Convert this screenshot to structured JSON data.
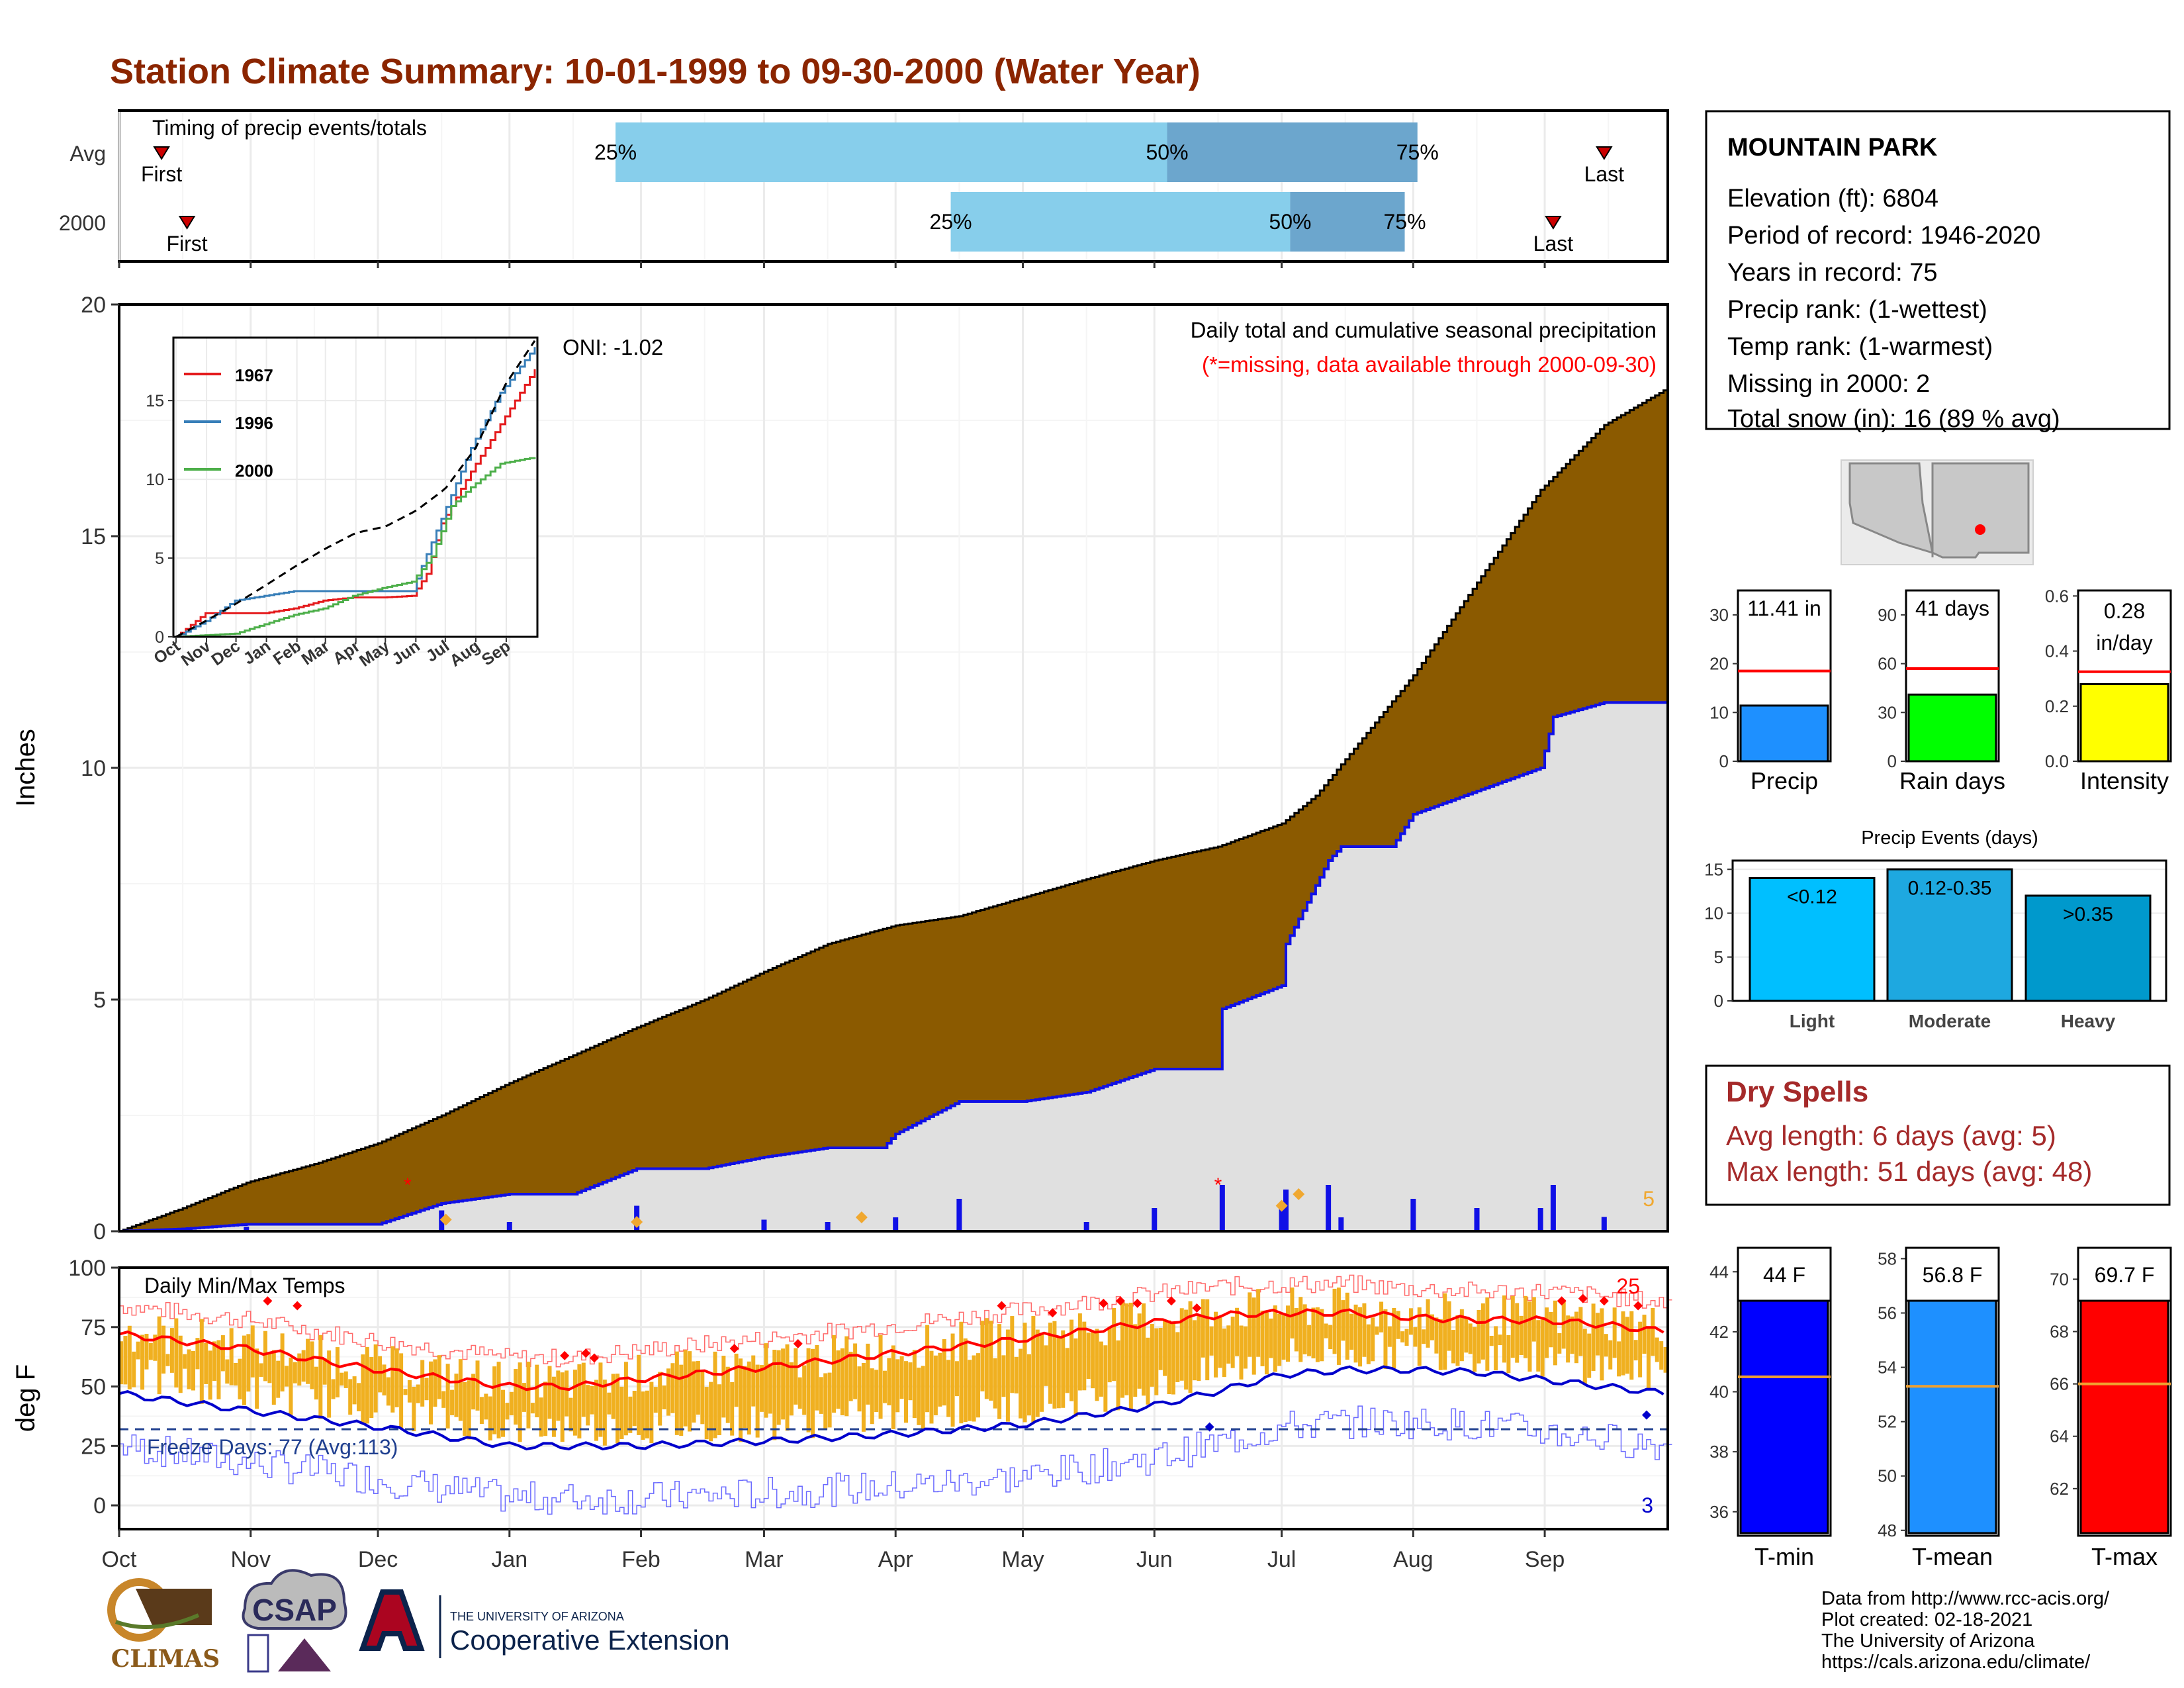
{
  "title": "Station Climate Summary: 10-01-1999 to 09-30-2000 (Water Year)",
  "colors": {
    "title": "#8B2500",
    "precip_fill": "#8B5A00",
    "avg_precip_fill": "#E0E0E0",
    "blue": "#1010E6",
    "red": "#FF0000",
    "orange": "#F0A830",
    "quartile_light": "#87CEEB",
    "quartile_dark": "#6CA6CD",
    "green_line": "#4DAF4A",
    "blue_line": "#377EB8",
    "red_line": "#E41A1C",
    "dry_spell_text": "#A52A2A"
  },
  "timing": {
    "label": "Timing of precip events/totals",
    "rows": [
      {
        "name": "Avg",
        "first": "First",
        "last": "Last",
        "q25": "25%",
        "q50": "50%",
        "q75": "75%",
        "first_day": 10,
        "q25_day": 117,
        "q50_day": 247,
        "q75_day": 306,
        "last_day": 350
      },
      {
        "name": "2000",
        "first": "First",
        "last": "Last",
        "q25": "25%",
        "q50": "50%",
        "q75": "75%",
        "first_day": 16,
        "q25_day": 196,
        "q50_day": 276,
        "q75_day": 303,
        "last_day": 338
      }
    ]
  },
  "x_months": [
    "Oct",
    "Nov",
    "Dec",
    "Jan",
    "Feb",
    "Mar",
    "Apr",
    "May",
    "Jun",
    "Jul",
    "Aug",
    "Sep"
  ],
  "precip_panel": {
    "ylabel": "Inches",
    "yticks": [
      0,
      5,
      10,
      15,
      20
    ],
    "ylim": [
      0,
      20
    ],
    "caption": "Daily total and cumulative seasonal precipitation",
    "subcaption": "(*=missing, data available through 2000-09-30)",
    "oni": "ONI: -1.02",
    "corner_count": "5"
  },
  "inset": {
    "yticks": [
      "0",
      "5",
      "10",
      "15"
    ],
    "xticks": [
      "Oct",
      "Nov",
      "Dec",
      "Jan",
      "Feb",
      "Mar",
      "Apr",
      "May",
      "Jun",
      "Jul",
      "Aug",
      "Sep"
    ],
    "legend": [
      "1967",
      "1996",
      "2000"
    ]
  },
  "temp_panel": {
    "ylabel": "deg F",
    "label": "Daily Min/Max Temps",
    "yticks": [
      0,
      25,
      50,
      75,
      100
    ],
    "freeze_label": "Freeze Days: 77 (Avg:113)",
    "count_top": "25",
    "count_bottom": "3"
  },
  "station": {
    "name": "MOUNTAIN PARK",
    "lines": [
      "Elevation (ft): 6804",
      "Period of record: 1946-2020",
      "Years in record: 75",
      "Precip rank:  (1-wettest)",
      "Temp rank:  (1-warmest)",
      "Missing in 2000: 2",
      "Total snow (in): 16 (89 % avg)"
    ]
  },
  "summary_bars": [
    {
      "label": "Precip",
      "value_label": "11.41 in",
      "value": 11.41,
      "avg": 18.5,
      "ymax": 35,
      "ticks": [
        "0",
        "10",
        "20",
        "30"
      ],
      "tickvals": [
        0,
        10,
        20,
        30
      ],
      "color": "#1E90FF"
    },
    {
      "label": "Rain days",
      "value_label": "41 days",
      "value": 41,
      "avg": 57,
      "ymax": 105,
      "ticks": [
        "0",
        "30",
        "60",
        "90"
      ],
      "tickvals": [
        0,
        30,
        60,
        90
      ],
      "color": "#00FF00"
    },
    {
      "label": "Intensity",
      "value_label": "0.28 in/day",
      "value": 0.28,
      "avg": 0.325,
      "ymax": 0.62,
      "ticks": [
        "0.0",
        "0.2",
        "0.4",
        "0.6"
      ],
      "tickvals": [
        0,
        0.2,
        0.4,
        0.6
      ],
      "color": "#FFFF00"
    }
  ],
  "events": {
    "title": "Precip Events (days)",
    "categories": [
      "Light",
      "Moderate",
      "Heavy"
    ],
    "bar_labels": [
      "<0.12",
      "0.12-0.35",
      ">0.35"
    ],
    "values": [
      14,
      15,
      12
    ],
    "yticks": [
      "0",
      "5",
      "10",
      "15"
    ],
    "colors": [
      "#00BFFF",
      "#1EA8E0",
      "#0099CC"
    ]
  },
  "dry_spells": {
    "title": "Dry Spells",
    "avg_line": "Avg length: 6 days (avg: 5)",
    "max_line": "Max length: 51 days (avg: 48)"
  },
  "temp_bars": [
    {
      "label": "T-min",
      "value_label": "44 F",
      "value": 44,
      "avg": 40.5,
      "ylim": [
        35.2,
        44.8
      ],
      "ticks": [
        "36",
        "38",
        "40",
        "42",
        "44"
      ],
      "tickvals": [
        36,
        38,
        40,
        42,
        44
      ],
      "color": "#0000FF"
    },
    {
      "label": "T-mean",
      "value_label": "56.8 F",
      "value": 56.8,
      "avg": 53.3,
      "ylim": [
        47.8,
        58.4
      ],
      "ticks": [
        "48",
        "50",
        "52",
        "54",
        "56",
        "58"
      ],
      "tickvals": [
        48,
        50,
        52,
        54,
        56,
        58
      ],
      "color": "#1E90FF"
    },
    {
      "label": "T-max",
      "value_label": "69.7 F",
      "value": 69.7,
      "avg": 66,
      "ylim": [
        60.2,
        71.2
      ],
      "ticks": [
        "62",
        "64",
        "66",
        "68",
        "70"
      ],
      "tickvals": [
        62,
        64,
        66,
        68,
        70
      ],
      "color": "#FF0000"
    }
  ],
  "credits": [
    "Data from http://www.rcc-acis.org/",
    "Plot created: 02-18-2021",
    "The University of Arizona",
    "https://cals.arizona.edu/climate/"
  ],
  "logos": {
    "climas": "CLIMAS",
    "csap": "CSAP",
    "ua_small": "THE UNIVERSITY OF ARIZONA",
    "ua_ext": "Cooperative Extension"
  },
  "chart_data": [
    {
      "type": "area",
      "title": "Daily total and cumulative seasonal precipitation",
      "ylabel": "Inches",
      "ylim": [
        0,
        20
      ],
      "x_unit": "day of water year (Oct 1 = 0)",
      "series": [
        {
          "name": "avg cumulative",
          "points": [
            [
              0,
              0
            ],
            [
              15,
              0.5
            ],
            [
              30,
              1.05
            ],
            [
              46,
              1.45
            ],
            [
              61,
              1.9
            ],
            [
              76,
              2.5
            ],
            [
              92,
              3.2
            ],
            [
              107,
              3.8
            ],
            [
              122,
              4.4
            ],
            [
              138,
              5.0
            ],
            [
              152,
              5.6
            ],
            [
              167,
              6.2
            ],
            [
              183,
              6.6
            ],
            [
              198,
              6.8
            ],
            [
              213,
              7.2
            ],
            [
              228,
              7.6
            ],
            [
              244,
              8.0
            ],
            [
              259,
              8.3
            ],
            [
              274,
              8.8
            ],
            [
              282,
              9.4
            ],
            [
              290,
              10.3
            ],
            [
              305,
              12.0
            ],
            [
              320,
              14.0
            ],
            [
              335,
              16.0
            ],
            [
              350,
              17.4
            ],
            [
              365,
              18.2
            ]
          ]
        },
        {
          "name": "2000 cumulative",
          "points": [
            [
              0,
              0
            ],
            [
              15,
              0.05
            ],
            [
              30,
              0.15
            ],
            [
              46,
              0.15
            ],
            [
              61,
              0.15
            ],
            [
              76,
              0.6
            ],
            [
              92,
              0.8
            ],
            [
              107,
              0.8
            ],
            [
              122,
              1.35
            ],
            [
              138,
              1.35
            ],
            [
              152,
              1.6
            ],
            [
              167,
              1.8
            ],
            [
              180,
              1.8
            ],
            [
              183,
              2.1
            ],
            [
              198,
              2.8
            ],
            [
              213,
              2.8
            ],
            [
              228,
              3.0
            ],
            [
              244,
              3.5
            ],
            [
              259,
              3.5
            ],
            [
              260,
              4.8
            ],
            [
              274,
              5.3
            ],
            [
              275,
              6.2
            ],
            [
              285,
              8.0
            ],
            [
              288,
              8.3
            ],
            [
              300,
              8.3
            ],
            [
              305,
              9.0
            ],
            [
              320,
              9.5
            ],
            [
              335,
              10.0
            ],
            [
              338,
              11.1
            ],
            [
              350,
              11.41
            ],
            [
              365,
              11.41
            ]
          ]
        }
      ]
    },
    {
      "type": "line",
      "title": "Daily Min/Max Temps",
      "ylabel": "deg F",
      "ylim": [
        -10,
        100
      ],
      "x_unit": "day of water year (Oct 1 = 0)",
      "series": [
        {
          "name": "avg max",
          "points": [
            [
              0,
              72
            ],
            [
              30,
              66
            ],
            [
              61,
              57
            ],
            [
              92,
              50
            ],
            [
              107,
              50
            ],
            [
              122,
              53
            ],
            [
              152,
              58
            ],
            [
              183,
              64
            ],
            [
              213,
              70
            ],
            [
              244,
              77
            ],
            [
              259,
              80
            ],
            [
              274,
              81
            ],
            [
              290,
              81
            ],
            [
              305,
              79
            ],
            [
              320,
              78
            ],
            [
              335,
              78
            ],
            [
              350,
              76
            ],
            [
              365,
              73
            ]
          ]
        },
        {
          "name": "avg min",
          "points": [
            [
              0,
              47
            ],
            [
              30,
              40
            ],
            [
              61,
              33
            ],
            [
              92,
              25
            ],
            [
              122,
              25
            ],
            [
              152,
              27
            ],
            [
              183,
              30
            ],
            [
              213,
              34
            ],
            [
              244,
              42
            ],
            [
              259,
              48
            ],
            [
              274,
              55
            ],
            [
              290,
              57
            ],
            [
              305,
              57
            ],
            [
              320,
              56
            ],
            [
              335,
              53
            ],
            [
              350,
              50
            ],
            [
              365,
              47
            ]
          ]
        }
      ]
    },
    {
      "type": "line",
      "title": "inset cumulative precipitation",
      "ylim": [
        0,
        19
      ],
      "series": [
        {
          "name": "1967",
          "points": [
            [
              0,
              0
            ],
            [
              30,
              1.5
            ],
            [
              60,
              1.5
            ],
            [
              90,
              1.5
            ],
            [
              120,
              1.8
            ],
            [
              150,
              2.3
            ],
            [
              180,
              2.5
            ],
            [
              210,
              2.5
            ],
            [
              240,
              2.6
            ],
            [
              255,
              4
            ],
            [
              270,
              7.2
            ],
            [
              300,
              10.5
            ],
            [
              330,
              13.5
            ],
            [
              365,
              17
            ]
          ]
        },
        {
          "name": "1996",
          "points": [
            [
              0,
              0
            ],
            [
              30,
              1.0
            ],
            [
              60,
              2.3
            ],
            [
              90,
              2.6
            ],
            [
              120,
              2.9
            ],
            [
              150,
              2.9
            ],
            [
              180,
              2.9
            ],
            [
              210,
              2.9
            ],
            [
              240,
              2.9
            ],
            [
              250,
              4.5
            ],
            [
              270,
              7.5
            ],
            [
              300,
              12
            ],
            [
              330,
              15.5
            ],
            [
              365,
              18.4
            ]
          ]
        },
        {
          "name": "2000",
          "points": [
            [
              0,
              0
            ],
            [
              30,
              0.1
            ],
            [
              60,
              0.2
            ],
            [
              90,
              0.8
            ],
            [
              120,
              1.4
            ],
            [
              150,
              1.8
            ],
            [
              180,
              2.6
            ],
            [
              210,
              3.1
            ],
            [
              240,
              3.5
            ],
            [
              260,
              5.1
            ],
            [
              280,
              8.3
            ],
            [
              300,
              9.5
            ],
            [
              330,
              11.0
            ],
            [
              365,
              11.41
            ]
          ]
        },
        {
          "name": "avg",
          "points": [
            [
              0,
              0
            ],
            [
              30,
              1.0
            ],
            [
              61,
              2.1
            ],
            [
              92,
              3.3
            ],
            [
              122,
              4.5
            ],
            [
              152,
              5.6
            ],
            [
              183,
              6.6
            ],
            [
              213,
              7.0
            ],
            [
              244,
              8.0
            ],
            [
              274,
              9.4
            ],
            [
              305,
              12.0
            ],
            [
              335,
              16.0
            ],
            [
              365,
              18.8
            ]
          ]
        }
      ]
    }
  ]
}
